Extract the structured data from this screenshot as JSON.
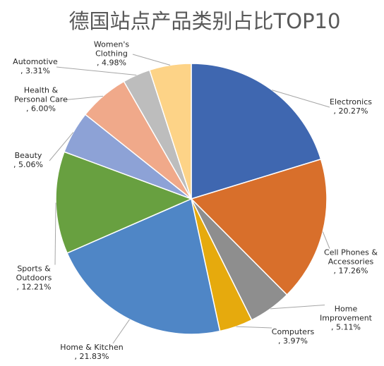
{
  "chart_data": {
    "type": "pie",
    "title": "德国站点产品类别占比TOP10",
    "categories": [
      "Electronics",
      "Cell Phones & Accessories",
      "Home Improvement",
      "Computers",
      "Home & Kitchen",
      "Sports & Outdoors",
      "Beauty",
      "Health & Personal Care",
      "Automotive",
      "Women's Clothing"
    ],
    "values": [
      20.27,
      17.26,
      5.11,
      3.97,
      21.83,
      12.21,
      5.06,
      6.0,
      3.31,
      4.98
    ],
    "value_labels": [
      ", 20.27%",
      ", 17.26%",
      ", 5.11%",
      ", 3.97%",
      ", 21.83%",
      ", 12.21%",
      ", 5.06%",
      ", 6.00%",
      ", 3.31%",
      ", 4.98%"
    ],
    "colors": [
      "#3f67b0",
      "#d86f2b",
      "#8e8e8e",
      "#e6aa0d",
      "#4f86c6",
      "#68a040",
      "#8da2d6",
      "#f0a98a",
      "#bdbdbd",
      "#fdd387"
    ]
  }
}
